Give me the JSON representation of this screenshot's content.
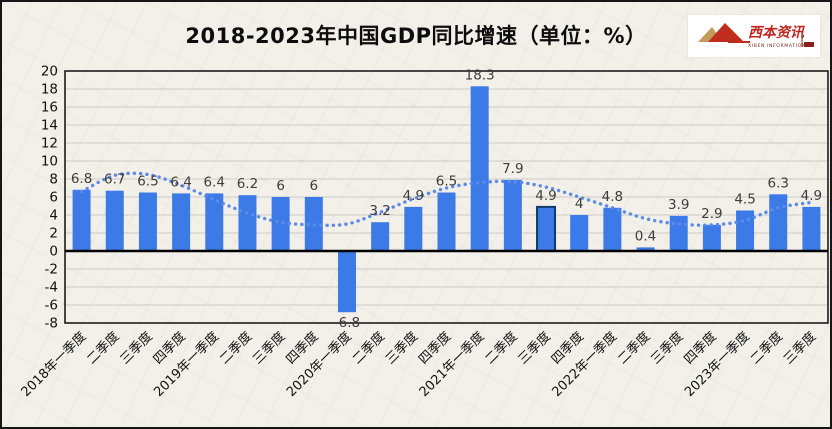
{
  "header": {
    "title": "2018-2023年中国GDP同比增速（单位：%）"
  },
  "logo": {
    "name": "西本资讯",
    "subtext": "XIBEN INFORMATION",
    "accent_red": "#c02c1e",
    "accent_dark_red": "#8a2018",
    "accent_gold": "#c49a5a"
  },
  "chart_data": {
    "type": "bar",
    "title": "2018-2023年中国GDP同比增速（单位：%）",
    "unit": "%",
    "categories": [
      "2018年一季度",
      "二季度",
      "三季度",
      "四季度",
      "2019年一季度",
      "二季度",
      "三季度",
      "四季度",
      "2020年一季度",
      "二季度",
      "三季度",
      "四季度",
      "2021年一季度",
      "二季度",
      "三季度",
      "四季度",
      "2022年一季度",
      "二季度",
      "三季度",
      "四季度",
      "2023年一季度",
      "二季度",
      "三季度"
    ],
    "values": [
      6.8,
      6.7,
      6.5,
      6.4,
      6.4,
      6.2,
      6,
      6,
      -6.8,
      3.2,
      4.9,
      6.5,
      18.3,
      7.9,
      4.9,
      4,
      4.8,
      0.4,
      3.9,
      2.9,
      4.5,
      6.3,
      4.9
    ],
    "ylim": [
      -8,
      20
    ],
    "ytick_step": 2,
    "grid": true,
    "bar_color": "#3c7ae8",
    "highlighted_index": 14,
    "highlight_border_color": "#123a6b",
    "grid_color": "#ccc9c2",
    "axis_color": "#000000",
    "label_color": "#3d3d3d",
    "tick_color": "#111111",
    "trendline": {
      "style": "dotted",
      "color": "#5b8bea",
      "values": [
        6.6,
        8.4,
        8.5,
        7.3,
        5.7,
        4.2,
        3.2,
        2.9,
        3.0,
        4.3,
        5.8,
        7.0,
        7.6,
        7.7,
        7.1,
        6.0,
        4.8,
        3.6,
        3.0,
        2.9,
        3.4,
        4.8,
        5.4
      ]
    }
  }
}
